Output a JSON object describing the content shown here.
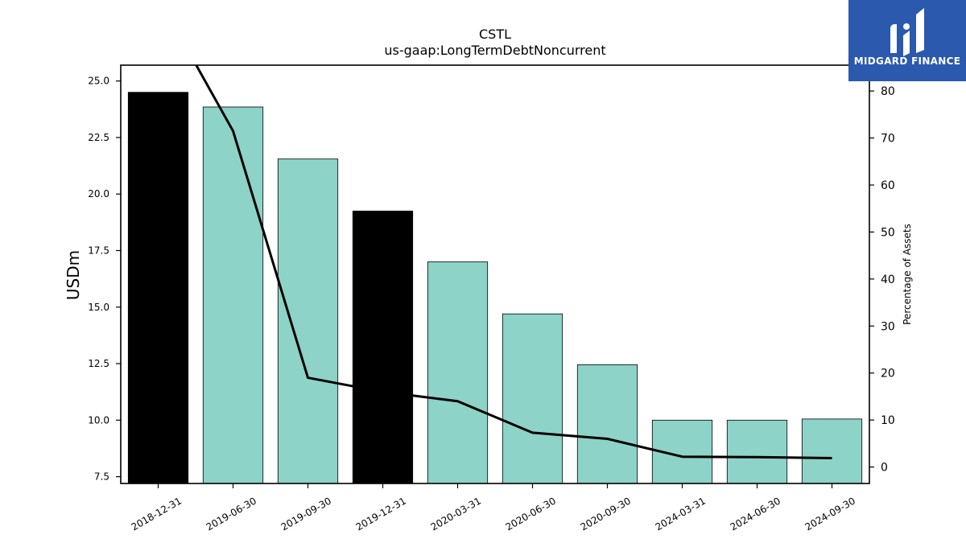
{
  "chart_data": {
    "type": "bar",
    "title": "CSTL",
    "subtitle": "us-gaap:LongTermDebtNoncurrent",
    "ylabel": "USDm",
    "y2label": "Percentage of Assets",
    "categories": [
      "2018-12-31",
      "2019-06-30",
      "2019-09-30",
      "2019-12-31",
      "2020-03-31",
      "2020-06-30",
      "2020-09-30",
      "2024-03-31",
      "2024-06-30",
      "2024-09-30"
    ],
    "values": [
      24.5,
      23.85,
      21.55,
      19.25,
      17.0,
      14.7,
      12.45,
      10.0,
      10.0,
      10.05
    ],
    "bar_colors": [
      "#000000",
      "#8dd3c7",
      "#8dd3c7",
      "#000000",
      "#8dd3c7",
      "#8dd3c7",
      "#8dd3c7",
      "#8dd3c7",
      "#8dd3c7",
      "#8dd3c7"
    ],
    "line_series": {
      "values": [
        null,
        71.5,
        19.0,
        16.0,
        14.0,
        7.3,
        6.0,
        2.2,
        2.1,
        1.9
      ],
      "color": "#000000",
      "offscale_start": [
        0.35,
        90.0
      ]
    },
    "ylim": [
      7.2,
      25.7
    ],
    "yticks": [
      7.5,
      10.0,
      12.5,
      15.0,
      17.5,
      20.0,
      22.5,
      25.0
    ],
    "y2lim": [
      -3.5,
      85.5
    ],
    "y2ticks": [
      0,
      10,
      20,
      30,
      40,
      50,
      60,
      70,
      80
    ],
    "grid": false
  },
  "logo": {
    "text": "MIDGARD FINANCE",
    "color": "#2b59ad"
  }
}
